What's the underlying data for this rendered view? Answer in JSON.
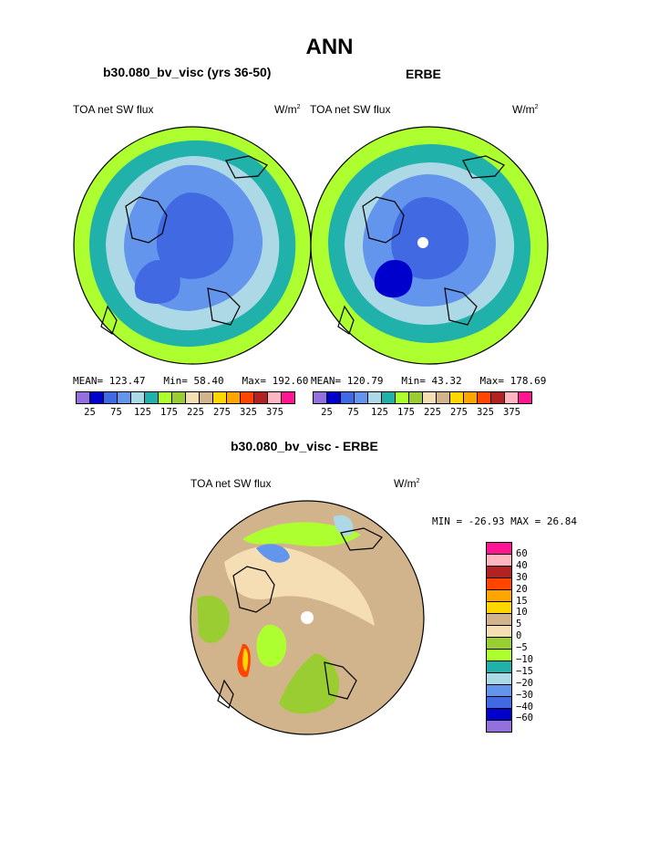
{
  "title": "ANN",
  "panels": [
    {
      "name": "b30.080_bv_visc (yrs 36-50)",
      "var_label": "TOA net SW flux",
      "units": "W/m",
      "units_sup": "2",
      "mean_label": "MEAN= 123.47",
      "min_label": "Min=  58.40",
      "max_label": "Max= 192.60"
    },
    {
      "name": "ERBE",
      "var_label": "TOA net SW flux",
      "units": "W/m",
      "units_sup": "2",
      "mean_label": "MEAN= 120.79",
      "min_label": "Min=  43.32",
      "max_label": "Max= 178.69"
    }
  ],
  "colorbar": {
    "colors": [
      "#9370DB",
      "#0000CD",
      "#4169E1",
      "#6495ED",
      "#ADD8E6",
      "#20B2AA",
      "#ADFF2F",
      "#9ACD32",
      "#F5DEB3",
      "#D2B48C",
      "#FFD700",
      "#FFA500",
      "#FF4500",
      "#B22222",
      "#FFB6C1",
      "#FF1493"
    ],
    "tick_labels": [
      "25",
      "75",
      "125",
      "175",
      "225",
      "275",
      "325",
      "375"
    ]
  },
  "diff": {
    "title": "b30.080_bv_visc - ERBE",
    "var_label": "TOA net SW flux",
    "units": "W/m",
    "units_sup": "2",
    "minmax_label": "MIN = -26.93 MAX =  26.84",
    "colorbar_colors": [
      "#FF1493",
      "#FFB6C1",
      "#B22222",
      "#FF4500",
      "#FFA500",
      "#FFD700",
      "#D2B48C",
      "#F5DEB3",
      "#9ACD32",
      "#ADFF2F",
      "#20B2AA",
      "#ADD8E6",
      "#6495ED",
      "#4169E1",
      "#0000CD",
      "#9370DB"
    ],
    "colorbar_labels": [
      "60",
      "40",
      "30",
      "20",
      "15",
      "10",
      "5",
      "0",
      "−5",
      "−10",
      "−15",
      "−20",
      "−30",
      "−40",
      "−60"
    ]
  }
}
